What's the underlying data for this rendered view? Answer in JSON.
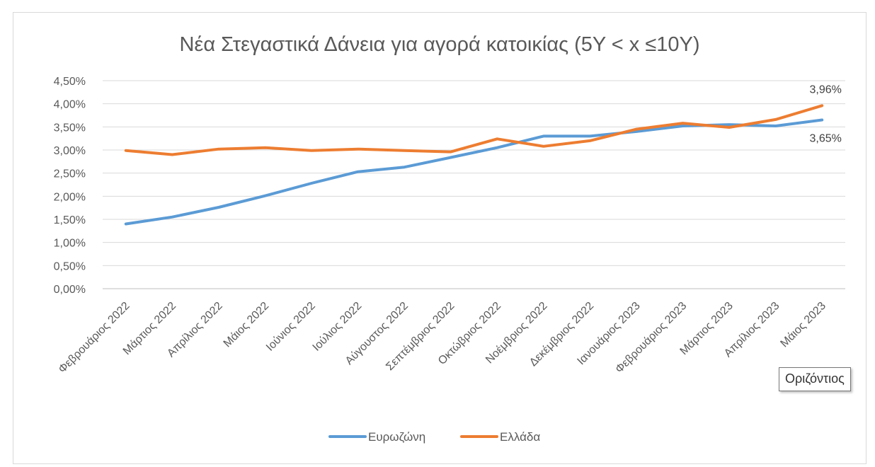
{
  "chart_data": {
    "type": "line",
    "title": "Νέα Στεγαστικά Δάνεια για αγορά κατοικίας (5Y < x ≤10Y)",
    "categories": [
      "Φεβρουάριος 2022",
      "Μάρτιος 2022",
      "Απρίλιος 2022",
      "Μάιος 2022",
      "Ιούνιος 2022",
      "Ιούλιος 2022",
      "Αύγουστος 2022",
      "Σεπτέμβριος 2022",
      "Οκτώβριος 2022",
      "Νοέμβριος 2022",
      "Δεκέμβριος 2022",
      "Ιανουάριος 2023",
      "Φεβρουάριος 2023",
      "Μάρτιος 2023",
      "Απρίλιος 2023",
      "Μάιος 2023"
    ],
    "series": [
      {
        "name": "Ευρωζώνη",
        "color": "#5b9bd5",
        "values": [
          1.4,
          1.55,
          1.76,
          2.01,
          2.28,
          2.53,
          2.63,
          2.84,
          3.05,
          3.3,
          3.3,
          3.4,
          3.52,
          3.55,
          3.52,
          3.65
        ]
      },
      {
        "name": "Ελλάδα",
        "color": "#ed7d31",
        "values": [
          2.99,
          2.9,
          3.02,
          3.05,
          2.99,
          3.02,
          2.99,
          2.96,
          3.24,
          3.08,
          3.2,
          3.45,
          3.58,
          3.49,
          3.66,
          3.96
        ]
      }
    ],
    "yticks": [
      "0,00%",
      "0,50%",
      "1,00%",
      "1,50%",
      "2,00%",
      "2,50%",
      "3,00%",
      "3,50%",
      "4,00%",
      "4,50%"
    ],
    "ylim": [
      0,
      4.5
    ],
    "grid": true,
    "legend_position": "bottom",
    "annotations": [
      {
        "series": 1,
        "index": 15,
        "label": "3,96%"
      },
      {
        "series": 0,
        "index": 15,
        "label": "3,65%"
      }
    ]
  },
  "tooltip": {
    "text": "Οριζόντιος"
  }
}
